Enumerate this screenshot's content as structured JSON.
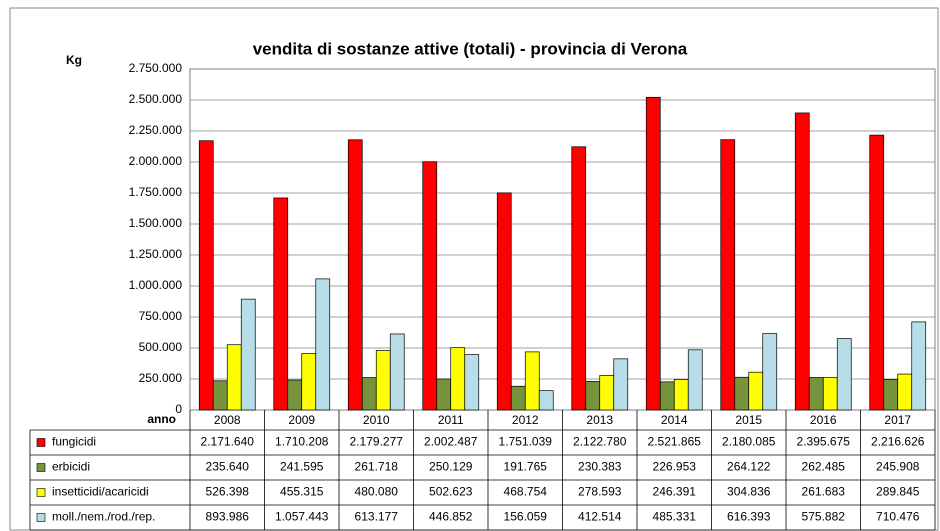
{
  "chart_data": {
    "type": "bar",
    "title": "vendita di sostanze attive (totali) - provincia di Verona",
    "y_label": "Kg",
    "x_label": "anno",
    "categories": [
      "2008",
      "2009",
      "2010",
      "2011",
      "2012",
      "2013",
      "2014",
      "2015",
      "2016",
      "2017"
    ],
    "ylim": [
      0,
      2750000
    ],
    "yticks": [
      0,
      {
        "value": 250000,
        "label": "250.000"
      },
      {
        "value": 500000,
        "label": "500.000"
      },
      {
        "value": 750000,
        "label": "750.000"
      },
      {
        "value": 1000000,
        "label": "1.000.000"
      },
      {
        "value": 1250000,
        "label": "1.250.000"
      },
      {
        "value": 1500000,
        "label": "1.500.000"
      },
      {
        "value": 1750000,
        "label": "1.750.000"
      },
      {
        "value": 2000000,
        "label": "2.000.000"
      },
      {
        "value": 2250000,
        "label": "2.250.000"
      },
      {
        "value": 2500000,
        "label": "2.500.000"
      },
      {
        "value": 2750000,
        "label": "2.750.000"
      }
    ],
    "grid": true,
    "series": [
      {
        "name": "fungicidi",
        "color": "#ff0000",
        "values": [
          2171640,
          1710208,
          2179277,
          2002487,
          1751039,
          2122780,
          2521865,
          2180085,
          2395675,
          2216626
        ],
        "value_labels": [
          "2.171.640",
          "1.710.208",
          "2.179.277",
          "2.002.487",
          "1.751.039",
          "2.122.780",
          "2.521.865",
          "2.180.085",
          "2.395.675",
          "2.216.626"
        ]
      },
      {
        "name": "erbicidi",
        "color": "#77933c",
        "values": [
          235640,
          241595,
          261718,
          250129,
          191765,
          230383,
          226953,
          264122,
          262485,
          245908
        ],
        "value_labels": [
          "235.640",
          "241.595",
          "261.718",
          "250.129",
          "191.765",
          "230.383",
          "226.953",
          "264.122",
          "262.485",
          "245.908"
        ]
      },
      {
        "name": "insetticidi/acaricidi",
        "color": "#ffff00",
        "values": [
          526398,
          455315,
          480080,
          502623,
          468754,
          278593,
          246391,
          304836,
          261683,
          289845
        ],
        "value_labels": [
          "526.398",
          "455.315",
          "480.080",
          "502.623",
          "468.754",
          "278.593",
          "246.391",
          "304.836",
          "261.683",
          "289.845"
        ]
      },
      {
        "name": "moll./nem./rod./rep.",
        "color": "#b7dde8",
        "values": [
          893986,
          1057443,
          613177,
          446852,
          156059,
          412514,
          485331,
          616393,
          575882,
          710476
        ],
        "value_labels": [
          "893.986",
          "1.057.443",
          "613.177",
          "446.852",
          "156.059",
          "412.514",
          "485.331",
          "616.393",
          "575.882",
          "710.476"
        ]
      }
    ]
  }
}
